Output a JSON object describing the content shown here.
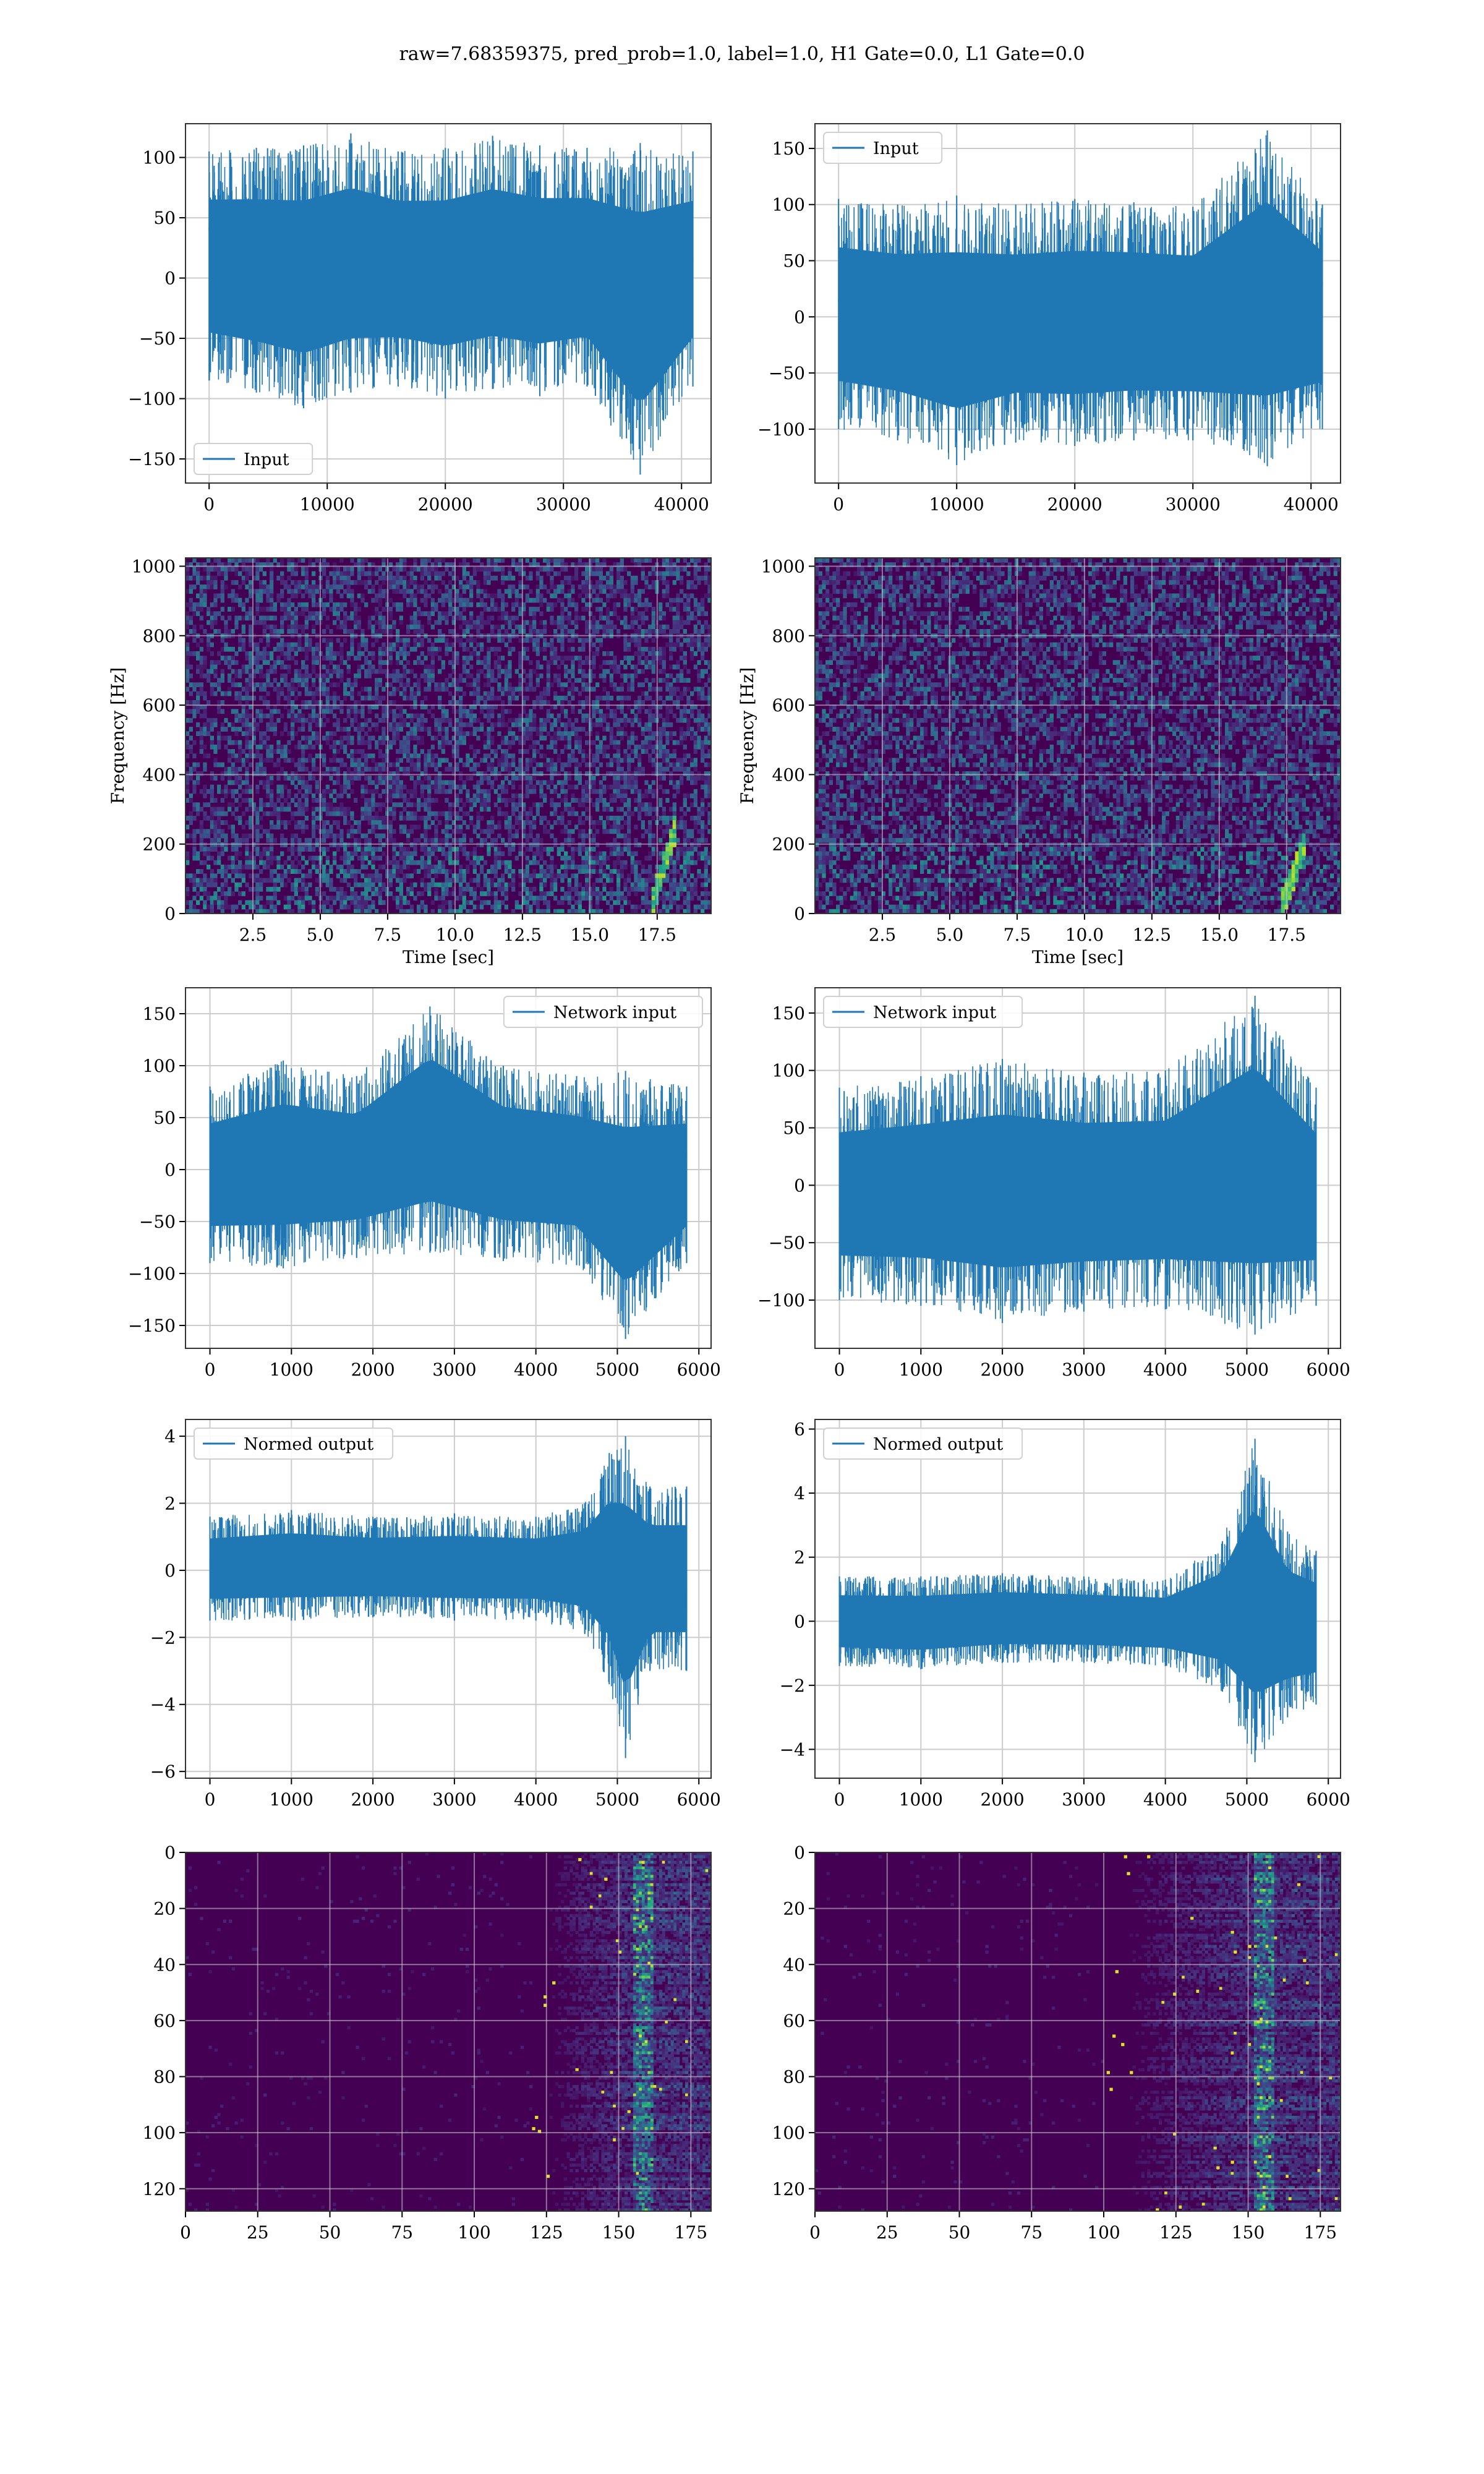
{
  "figure": {
    "title": "raw=7.68359375, pred_prob=1.0, label=1.0, H1 Gate=0.0, L1 Gate=0.0",
    "colors": {
      "line": "#1f77b4",
      "grid": "#cccccc",
      "axes": "#333333",
      "viridis_low": "#440154"
    }
  },
  "chart_data": [
    {
      "id": "input-h1",
      "type": "line",
      "legend": "Input",
      "legend_loc": "lower-left",
      "xlim": [
        -2000,
        42500
      ],
      "ylim": [
        -170,
        128
      ],
      "xticks": [
        0,
        10000,
        20000,
        30000,
        40000
      ],
      "yticks": [
        -150,
        -100,
        -50,
        0,
        50,
        100
      ],
      "xtick_labels": [
        "0",
        "10000",
        "20000",
        "30000",
        "40000"
      ],
      "ytick_labels": [
        "−150",
        "−100",
        "−50",
        "0",
        "50",
        "100"
      ],
      "series": [
        {
          "x_range": [
            0,
            40960
          ],
          "envelope": [
            [
              0,
              -85,
              105
            ],
            [
              4000,
              -95,
              108
            ],
            [
              8000,
              -108,
              110
            ],
            [
              12000,
              -95,
              120
            ],
            [
              16000,
              -90,
              105
            ],
            [
              20000,
              -100,
              108
            ],
            [
              24000,
              -92,
              118
            ],
            [
              28000,
              -98,
              110
            ],
            [
              32000,
              -90,
              108
            ],
            [
              36500,
              -163,
              112
            ],
            [
              40960,
              -90,
              105
            ]
          ]
        }
      ]
    },
    {
      "id": "input-l1",
      "type": "line",
      "legend": "Input",
      "legend_loc": "upper-left",
      "xlim": [
        -2000,
        42500
      ],
      "ylim": [
        -148,
        172
      ],
      "xticks": [
        0,
        10000,
        20000,
        30000,
        40000
      ],
      "yticks": [
        -100,
        -50,
        0,
        50,
        100,
        150
      ],
      "xtick_labels": [
        "0",
        "10000",
        "20000",
        "30000",
        "40000"
      ],
      "ytick_labels": [
        "−100",
        "−50",
        "0",
        "50",
        "100",
        "150"
      ],
      "series": [
        {
          "x_range": [
            0,
            40960
          ],
          "envelope": [
            [
              0,
              -100,
              105
            ],
            [
              5000,
              -110,
              100
            ],
            [
              10000,
              -132,
              108
            ],
            [
              15000,
              -112,
              100
            ],
            [
              20000,
              -115,
              105
            ],
            [
              25000,
              -110,
              102
            ],
            [
              30000,
              -110,
              98
            ],
            [
              36300,
              -133,
              166
            ],
            [
              40960,
              -100,
              100
            ]
          ]
        }
      ]
    },
    {
      "id": "spectrogram-h1",
      "type": "heatmap",
      "xlabel": "Time [sec]",
      "ylabel": "Frequency [Hz]",
      "xlim": [
        0,
        19.5
      ],
      "ylim": [
        0,
        1024
      ],
      "xticks": [
        2.5,
        5.0,
        7.5,
        10.0,
        12.5,
        15.0,
        17.5
      ],
      "yticks": [
        0,
        200,
        400,
        600,
        800,
        1000
      ],
      "xtick_labels": [
        "2.5",
        "5.0",
        "7.5",
        "10.0",
        "12.5",
        "15.0",
        "17.5"
      ],
      "ytick_labels": [
        "0",
        "200",
        "400",
        "600",
        "800",
        "1000"
      ],
      "colormap": "viridis",
      "chirp": {
        "t_start": 17.2,
        "t_end": 18.1,
        "f_start": 20,
        "f_end": 250
      }
    },
    {
      "id": "spectrogram-l1",
      "type": "heatmap",
      "xlabel": "Time [sec]",
      "ylabel": "Frequency [Hz]",
      "xlim": [
        0,
        19.5
      ],
      "ylim": [
        0,
        1024
      ],
      "xticks": [
        2.5,
        5.0,
        7.5,
        10.0,
        12.5,
        15.0,
        17.5
      ],
      "yticks": [
        0,
        200,
        400,
        600,
        800,
        1000
      ],
      "xtick_labels": [
        "2.5",
        "5.0",
        "7.5",
        "10.0",
        "12.5",
        "15.0",
        "17.5"
      ],
      "ytick_labels": [
        "0",
        "200",
        "400",
        "600",
        "800",
        "1000"
      ],
      "colormap": "viridis",
      "chirp": {
        "t_start": 17.2,
        "t_end": 18.1,
        "f_start": 20,
        "f_end": 200
      }
    },
    {
      "id": "network-input-h1",
      "type": "line",
      "legend": "Network input",
      "legend_loc": "upper-right",
      "xlim": [
        -300,
        6150
      ],
      "ylim": [
        -172,
        175
      ],
      "xticks": [
        0,
        1000,
        2000,
        3000,
        4000,
        5000,
        6000
      ],
      "yticks": [
        -150,
        -100,
        -50,
        0,
        50,
        100,
        150
      ],
      "xtick_labels": [
        "0",
        "1000",
        "2000",
        "3000",
        "4000",
        "5000",
        "6000"
      ],
      "ytick_labels": [
        "−150",
        "−100",
        "−50",
        "0",
        "50",
        "100",
        "150"
      ],
      "series": [
        {
          "x_range": [
            0,
            5850
          ],
          "envelope": [
            [
              0,
              -90,
              80
            ],
            [
              900,
              -95,
              105
            ],
            [
              1800,
              -85,
              90
            ],
            [
              2700,
              -80,
              157
            ],
            [
              3600,
              -88,
              100
            ],
            [
              4500,
              -92,
              90
            ],
            [
              5100,
              -163,
              95
            ],
            [
              5850,
              -90,
              80
            ]
          ]
        }
      ]
    },
    {
      "id": "network-input-l1",
      "type": "line",
      "legend": "Network input",
      "legend_loc": "upper-left",
      "xlim": [
        -300,
        6150
      ],
      "ylim": [
        -142,
        172
      ],
      "xticks": [
        0,
        1000,
        2000,
        3000,
        4000,
        5000,
        6000
      ],
      "yticks": [
        -100,
        -50,
        0,
        50,
        100,
        150
      ],
      "xtick_labels": [
        "0",
        "1000",
        "2000",
        "3000",
        "4000",
        "5000",
        "6000"
      ],
      "ytick_labels": [
        "−100",
        "−50",
        "0",
        "50",
        "100",
        "150"
      ],
      "series": [
        {
          "x_range": [
            0,
            5850
          ],
          "envelope": [
            [
              0,
              -100,
              85
            ],
            [
              1000,
              -105,
              95
            ],
            [
              2000,
              -120,
              110
            ],
            [
              3000,
              -110,
              98
            ],
            [
              4000,
              -108,
              100
            ],
            [
              5100,
              -130,
              165
            ],
            [
              5850,
              -105,
              85
            ]
          ]
        }
      ]
    },
    {
      "id": "normed-output-h1",
      "type": "line",
      "legend": "Normed output",
      "legend_loc": "upper-left",
      "xlim": [
        -300,
        6150
      ],
      "ylim": [
        -6.2,
        4.5
      ],
      "xticks": [
        0,
        1000,
        2000,
        3000,
        4000,
        5000,
        6000
      ],
      "yticks": [
        -6,
        -4,
        -2,
        0,
        2,
        4
      ],
      "xtick_labels": [
        "0",
        "1000",
        "2000",
        "3000",
        "4000",
        "5000",
        "6000"
      ],
      "ytick_labels": [
        "−6",
        "−4",
        "−2",
        "0",
        "2",
        "4"
      ],
      "series": [
        {
          "x_range": [
            0,
            5850
          ],
          "envelope": [
            [
              0,
              -1.5,
              1.6
            ],
            [
              1000,
              -1.5,
              1.8
            ],
            [
              2000,
              -1.4,
              1.6
            ],
            [
              3000,
              -1.5,
              1.7
            ],
            [
              4000,
              -1.5,
              1.6
            ],
            [
              4600,
              -1.9,
              2.0
            ],
            [
              4900,
              -3.4,
              3.5
            ],
            [
              5100,
              -5.6,
              4.0
            ],
            [
              5400,
              -3.0,
              2.5
            ],
            [
              5850,
              -3.0,
              2.5
            ]
          ]
        }
      ]
    },
    {
      "id": "normed-output-l1",
      "type": "line",
      "legend": "Normed output",
      "legend_loc": "upper-left",
      "xlim": [
        -300,
        6150
      ],
      "ylim": [
        -4.9,
        6.3
      ],
      "xticks": [
        0,
        1000,
        2000,
        3000,
        4000,
        5000,
        6000
      ],
      "yticks": [
        -4,
        -2,
        0,
        2,
        4,
        6
      ],
      "xtick_labels": [
        "0",
        "1000",
        "2000",
        "3000",
        "4000",
        "5000",
        "6000"
      ],
      "ytick_labels": [
        "−4",
        "−2",
        "0",
        "2",
        "4",
        "6"
      ],
      "series": [
        {
          "x_range": [
            0,
            5850
          ],
          "envelope": [
            [
              0,
              -1.4,
              1.4
            ],
            [
              1000,
              -1.5,
              1.4
            ],
            [
              2000,
              -1.3,
              1.5
            ],
            [
              3000,
              -1.3,
              1.4
            ],
            [
              4000,
              -1.4,
              1.3
            ],
            [
              4700,
              -2.2,
              2.5
            ],
            [
              5100,
              -4.4,
              5.7
            ],
            [
              5500,
              -3.0,
              2.8
            ],
            [
              5850,
              -2.6,
              2.2
            ]
          ]
        }
      ]
    },
    {
      "id": "activation-map-h1",
      "type": "heatmap",
      "colormap": "viridis",
      "xlim": [
        0,
        182
      ],
      "ylim": [
        128,
        0
      ],
      "xticks": [
        0,
        25,
        50,
        75,
        100,
        125,
        150,
        175
      ],
      "yticks": [
        0,
        20,
        40,
        60,
        80,
        100,
        120
      ],
      "xtick_labels": [
        "0",
        "25",
        "50",
        "75",
        "100",
        "125",
        "150",
        "175"
      ],
      "ytick_labels": [
        "0",
        "20",
        "40",
        "60",
        "80",
        "100",
        "120"
      ],
      "activity_onset": 120,
      "activity_peak": 158
    },
    {
      "id": "activation-map-l1",
      "type": "heatmap",
      "colormap": "viridis",
      "xlim": [
        0,
        182
      ],
      "ylim": [
        128,
        0
      ],
      "xticks": [
        0,
        25,
        50,
        75,
        100,
        125,
        150,
        175
      ],
      "yticks": [
        0,
        20,
        40,
        60,
        80,
        100,
        120
      ],
      "xtick_labels": [
        "0",
        "25",
        "50",
        "75",
        "100",
        "125",
        "150",
        "175"
      ],
      "ytick_labels": [
        "0",
        "20",
        "40",
        "60",
        "80",
        "100",
        "120"
      ],
      "activity_onset": 100,
      "activity_peak": 155
    }
  ]
}
